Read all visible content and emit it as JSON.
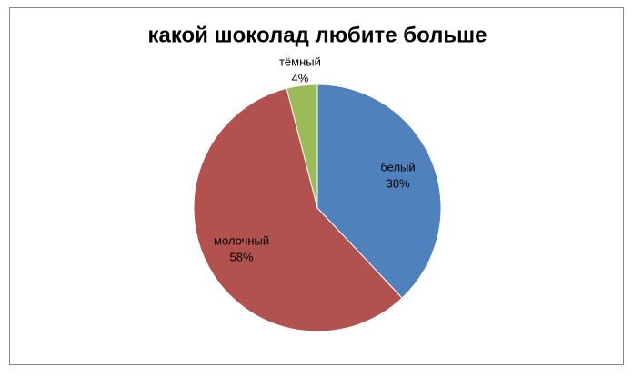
{
  "chart_data": {
    "type": "pie",
    "title": "какой шоколад любите больше",
    "categories": [
      "белый",
      "молочный",
      "тёмный"
    ],
    "values": [
      38,
      58,
      4
    ],
    "value_labels": [
      "38%",
      "58%",
      "4%"
    ],
    "colors": [
      "#4f81bd",
      "#b2524f",
      "#9bbb59"
    ]
  }
}
